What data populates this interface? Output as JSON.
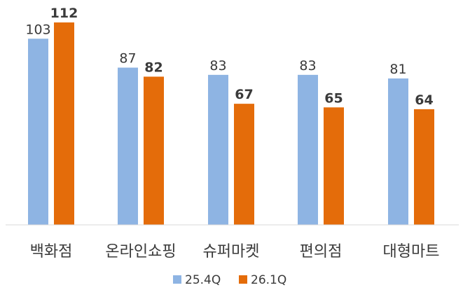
{
  "chart_data": {
    "type": "bar",
    "categories": [
      "백화점",
      "온라인쇼핑",
      "슈퍼마켓",
      "편의점",
      "대형마트"
    ],
    "series": [
      {
        "name": "25.4Q",
        "values": [
          103,
          87,
          83,
          83,
          81
        ],
        "color": "#8EB4E3",
        "label_bold": false
      },
      {
        "name": "26.1Q",
        "values": [
          112,
          82,
          67,
          65,
          64
        ],
        "color": "#E46C0A",
        "label_bold": true
      }
    ],
    "ylim": [
      0,
      112
    ],
    "grid": false,
    "legend_position": "bottom"
  }
}
